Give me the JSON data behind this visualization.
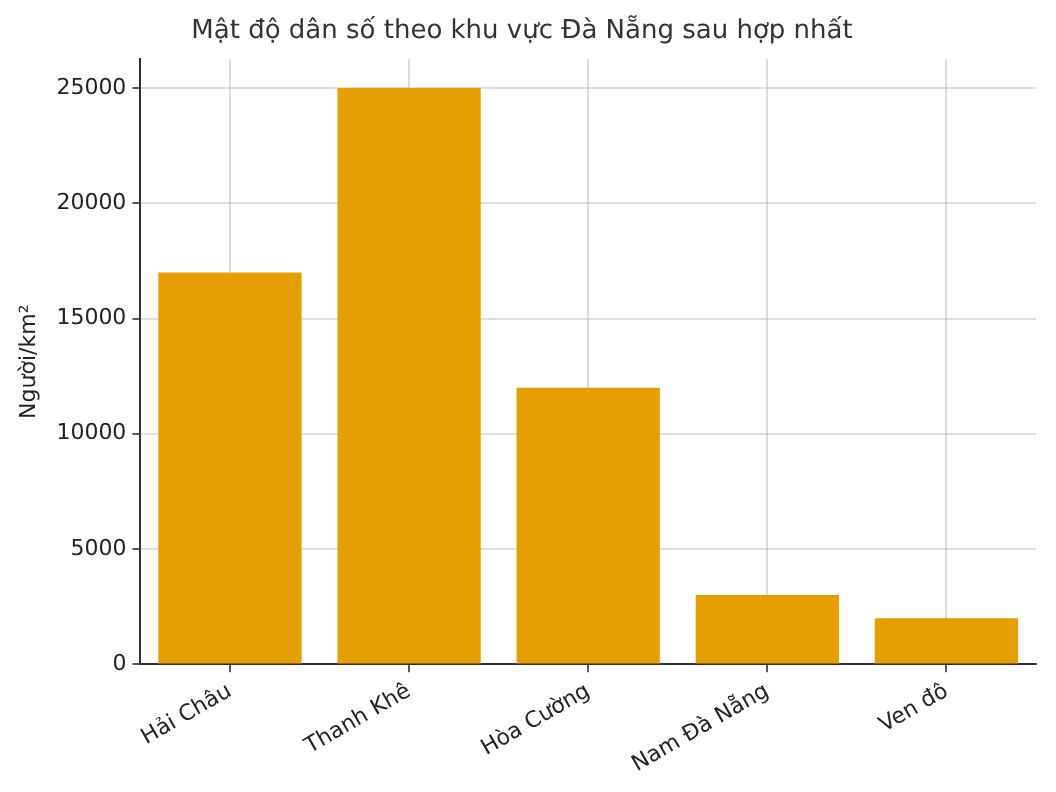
{
  "chart_data": {
    "type": "bar",
    "title": "Mật độ dân số theo khu vực Đà Nẵng sau hợp nhất",
    "ylabel": "Người/km²",
    "categories": [
      "Hải Châu",
      "Thanh Khê",
      "Hòa Cường",
      "Nam Đà Nẵng",
      "Ven đô"
    ],
    "values": [
      17000,
      25000,
      12000,
      3000,
      2000
    ],
    "color": "#e69f00",
    "ylim": [
      0,
      26250
    ],
    "yticks": [
      0,
      5000,
      10000,
      15000,
      20000,
      25000
    ],
    "grid": true,
    "legend": false
  }
}
